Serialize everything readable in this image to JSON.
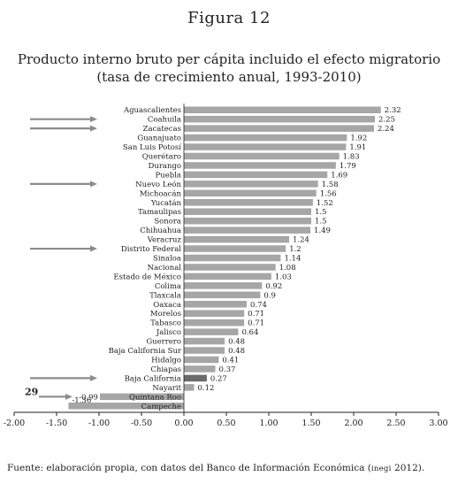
{
  "figure_label": "Figura 12",
  "source": {
    "prefix": "Fuente: elaboración propia, con datos del Banco de Información Económica (",
    "acronym": "inegi",
    "suffix": " 2012)."
  },
  "chart_data": {
    "type": "bar",
    "orientation": "horizontal",
    "title": "Producto interno bruto per cápita incluido el efecto migratorio",
    "subtitle": "(tasa de crecimiento anual, 1993-2010)",
    "xlim": [
      -2.0,
      3.0
    ],
    "xticks": [
      "-2.00",
      "-1.50",
      "-1.00",
      "-0.50",
      "0.00",
      "0.50",
      "1.00",
      "1.50",
      "2.00",
      "2.50",
      "3.00"
    ],
    "categories": [
      "Aguascalientes",
      "Coahuila",
      "Zacatecas",
      "Guanajuato",
      "San Luis Potosí",
      "Querétaro",
      "Durango",
      "Puebla",
      "Nuevo León",
      "Michoacán",
      "Yucatán",
      "Tamaulipas",
      "Sonora",
      "Chihuahua",
      "Veracruz",
      "Distrito Federal",
      "Sinaloa",
      "Nacional",
      "Estado de México",
      "Colima",
      "Tlaxcala",
      "Oaxaca",
      "Morelos",
      "Tabasco",
      "Jalisco",
      "Guerrero",
      "Baja California Sur",
      "Hidalgo",
      "Chiapas",
      "Baja California",
      "Nayarit",
      "Quintana Roo",
      "Campeche"
    ],
    "values": [
      2.32,
      2.25,
      2.24,
      1.92,
      1.91,
      1.83,
      1.79,
      1.69,
      1.58,
      1.56,
      1.52,
      1.5,
      1.5,
      1.49,
      1.24,
      1.2,
      1.14,
      1.08,
      1.03,
      0.92,
      0.9,
      0.74,
      0.71,
      0.71,
      0.64,
      0.48,
      0.48,
      0.41,
      0.37,
      0.27,
      0.12,
      -0.99,
      -1.36
    ],
    "value_labels": [
      "2.32",
      "2.25",
      "2.24",
      "1.92",
      "1.91",
      "1.83",
      "1.79",
      "1.69",
      "1.58",
      "1.56",
      "1.52",
      "1.5",
      "1.5",
      "1.49",
      "1.24",
      "1.2",
      "1.14",
      "1.08",
      "1.03",
      "0.92",
      "0.9",
      "0.74",
      "0.71",
      "0.71",
      "0.64",
      "0.48",
      "0.48",
      "0.41",
      "0.37",
      "0.27",
      "0.12",
      "-0.99",
      "-1.36"
    ],
    "highlighted": [
      "Baja California"
    ],
    "arrow_markers": [
      "Coahuila",
      "Zacatecas",
      "Nuevo León",
      "Distrito Federal",
      "Baja California",
      "Quintana Roo"
    ],
    "annotation": {
      "text": "29",
      "category": "Quintana Roo"
    },
    "colors": {
      "bar": "#a6a6a6",
      "highlight": "#6b6b6b",
      "arrow": "#8c8c8c",
      "axis": "#222222"
    },
    "grid": false
  }
}
